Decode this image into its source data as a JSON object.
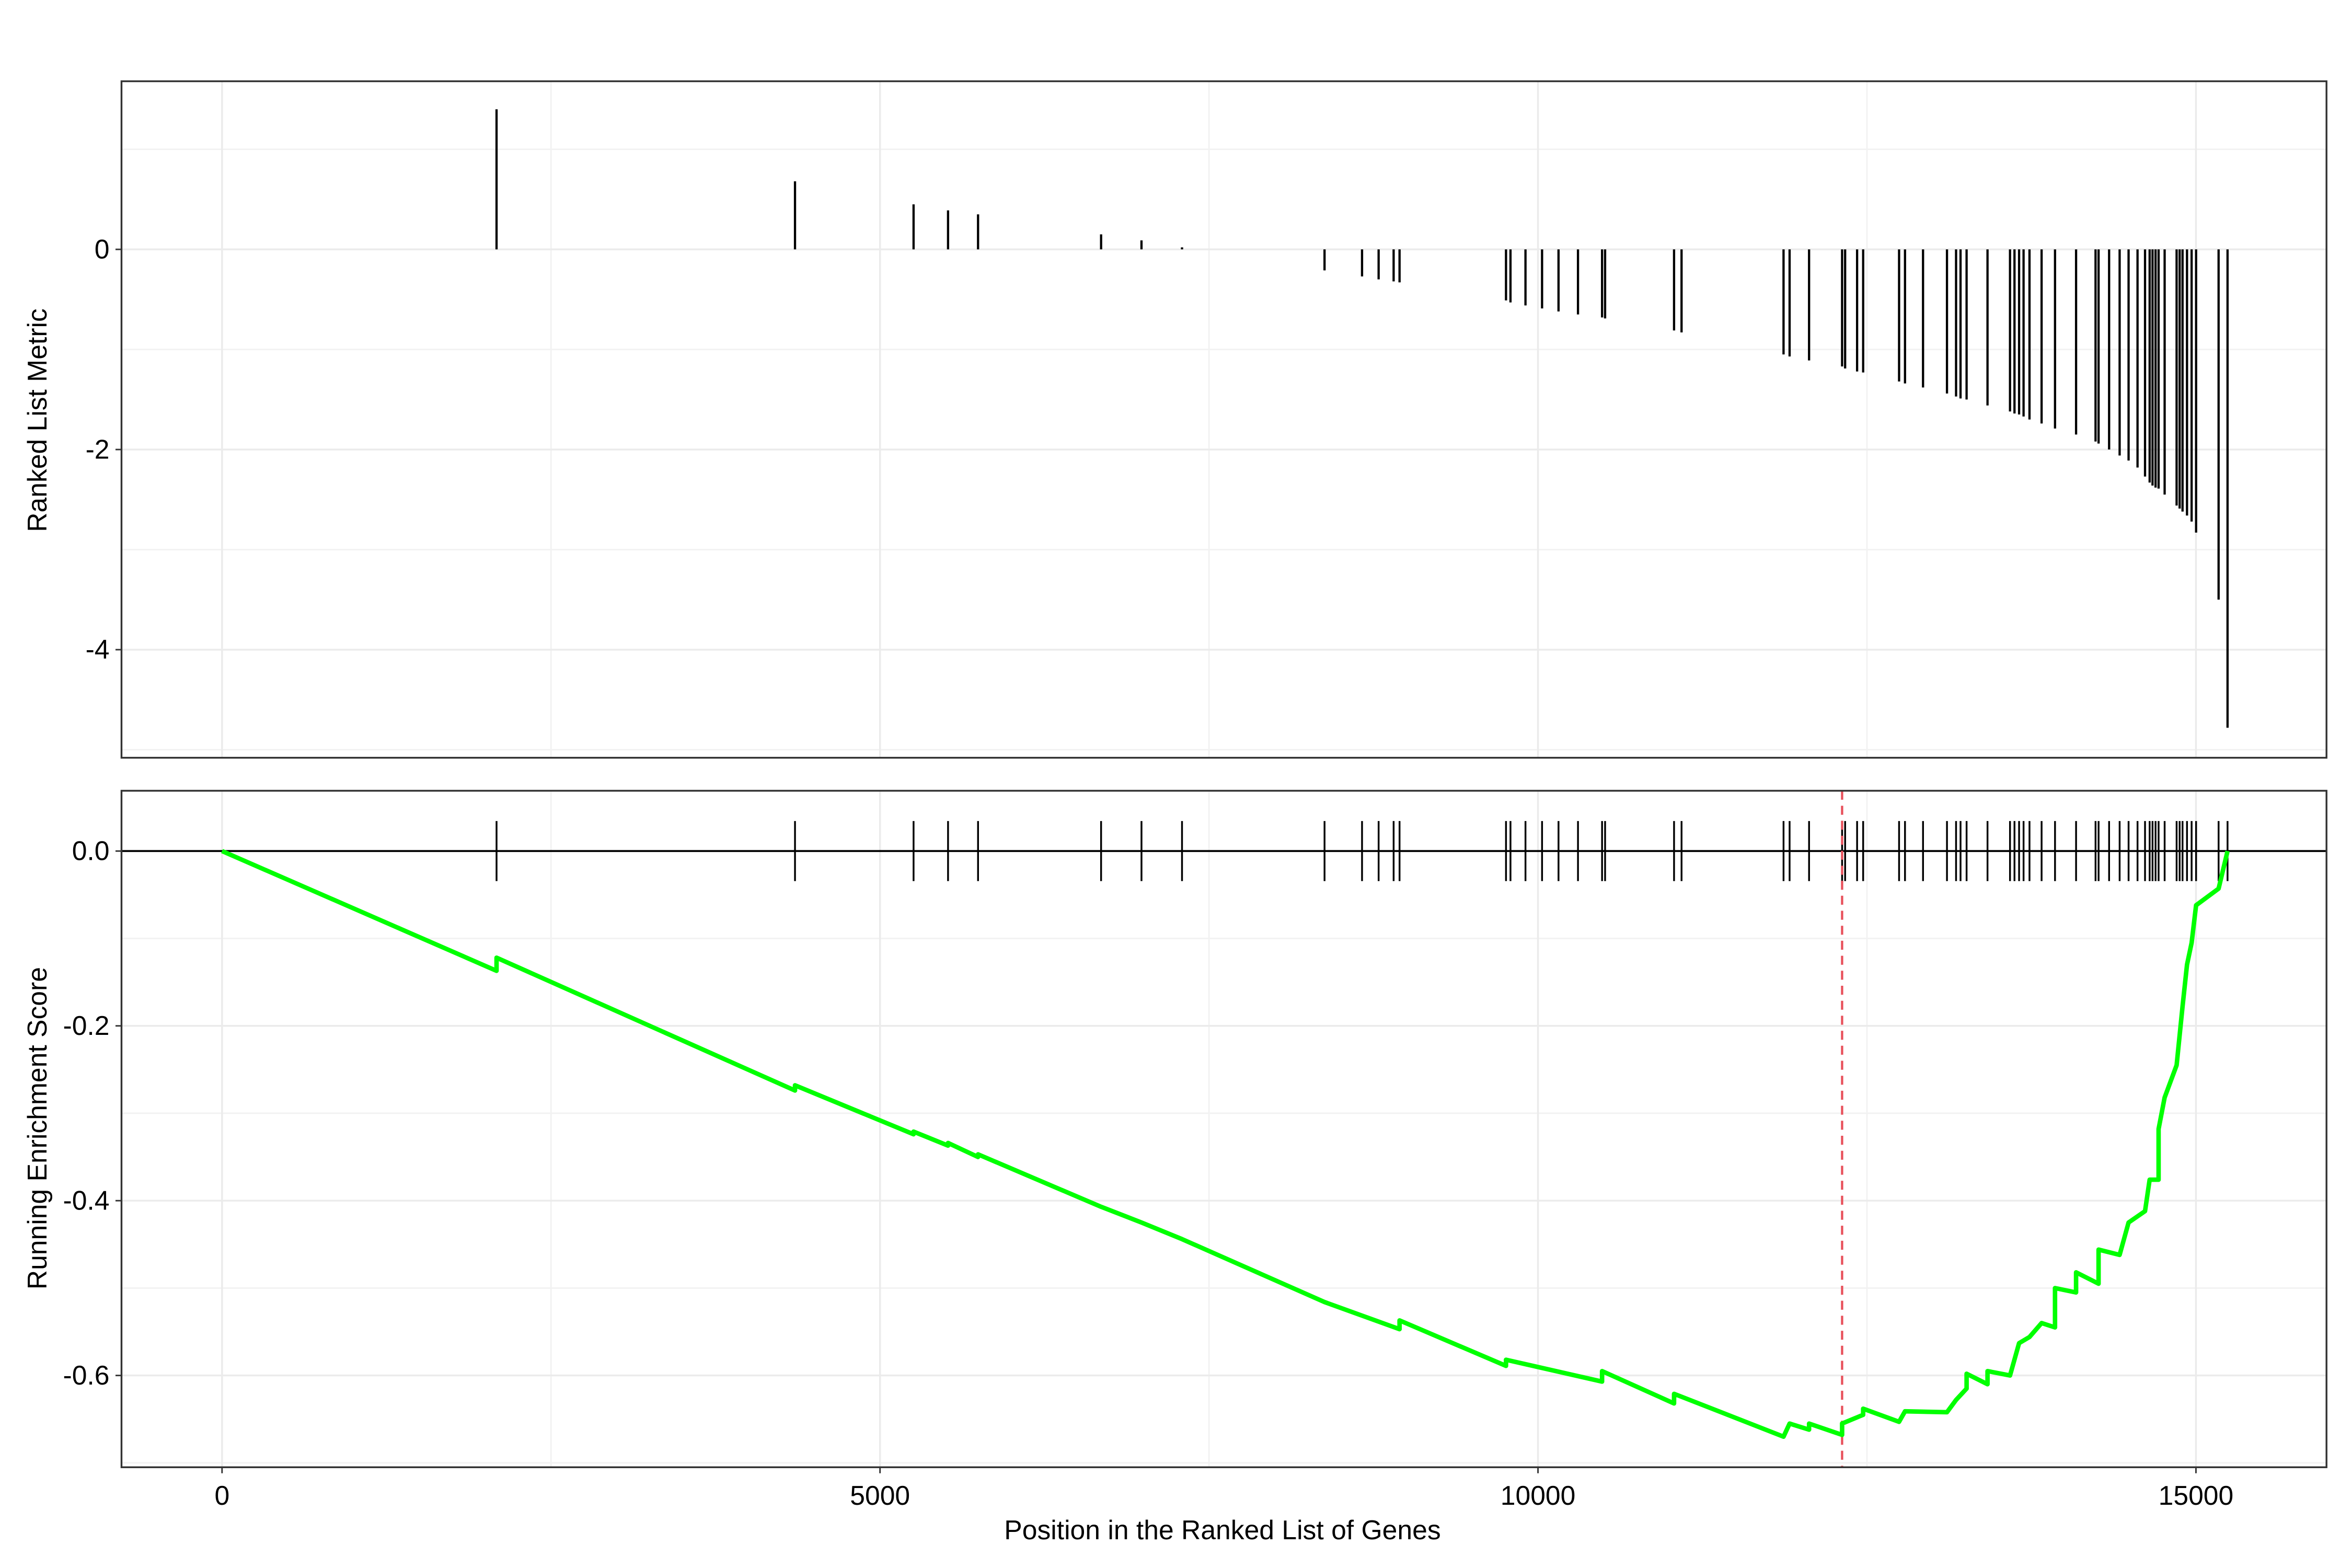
{
  "chart_data": [
    {
      "type": "spike",
      "ylabel": "Ranked List Metric",
      "color": "#000000",
      "x": [
        2086,
        4354,
        5255,
        5517,
        5745,
        6680,
        6987,
        7295,
        8378,
        8663,
        8789,
        8903,
        8948,
        9757,
        9791,
        9905,
        10031,
        10156,
        10304,
        10487,
        10510,
        11034,
        11091,
        11866,
        11912,
        12060,
        12311,
        12334,
        12425,
        12471,
        12744,
        12789,
        12926,
        13108,
        13177,
        13211,
        13257,
        13416,
        13587,
        13621,
        13656,
        13690,
        13735,
        13827,
        13929,
        14089,
        14237,
        14260,
        14340,
        14420,
        14488,
        14556,
        14613,
        14648,
        14670,
        14693,
        14716,
        14762,
        14853,
        14876,
        14898,
        14932,
        14967,
        15001,
        15172,
        15240
      ],
      "values": [
        1.4,
        0.68,
        0.45,
        0.39,
        0.35,
        0.15,
        0.09,
        0.02,
        -0.21,
        -0.27,
        -0.3,
        -0.32,
        -0.33,
        -0.51,
        -0.53,
        -0.56,
        -0.59,
        -0.62,
        -0.65,
        -0.68,
        -0.69,
        -0.81,
        -0.83,
        -1.05,
        -1.07,
        -1.11,
        -1.17,
        -1.19,
        -1.22,
        -1.23,
        -1.32,
        -1.34,
        -1.38,
        -1.44,
        -1.47,
        -1.49,
        -1.5,
        -1.56,
        -1.62,
        -1.64,
        -1.65,
        -1.67,
        -1.7,
        -1.74,
        -1.79,
        -1.85,
        -1.92,
        -1.94,
        -2.0,
        -2.06,
        -2.11,
        -2.18,
        -2.27,
        -2.33,
        -2.36,
        -2.38,
        -2.39,
        -2.45,
        -2.56,
        -2.59,
        -2.62,
        -2.66,
        -2.72,
        -2.83,
        -3.5,
        -4.78
      ],
      "xlim": [
        -764,
        15992
      ],
      "ylim": [
        -5.08,
        1.68
      ],
      "yticks": [
        -4,
        -2,
        0
      ],
      "grid": true
    },
    {
      "type": "line",
      "xlabel": "Position in the Ranked List of Genes",
      "ylabel": "Running Enrichment Score",
      "color": "#00ff00",
      "x": [
        0,
        2086,
        2086,
        4354,
        4354,
        5255,
        5255,
        5517,
        5517,
        5745,
        5745,
        6680,
        6987,
        7295,
        8378,
        8948,
        8948,
        9757,
        9757,
        10487,
        10487,
        11034,
        11034,
        11866,
        11912,
        12060,
        12060,
        12311,
        12311,
        12471,
        12471,
        12744,
        12789,
        13108,
        13177,
        13257,
        13257,
        13416,
        13416,
        13587,
        13656,
        13735,
        13827,
        13929,
        13929,
        14089,
        14089,
        14260,
        14260,
        14420,
        14488,
        14613,
        14648,
        14716,
        14716,
        14762,
        14853,
        14898,
        14932,
        14967,
        15001,
        15172,
        15240
      ],
      "values": [
        0,
        -0.137,
        -0.122,
        -0.274,
        -0.268,
        -0.324,
        -0.321,
        -0.337,
        -0.334,
        -0.35,
        -0.347,
        -0.407,
        -0.425,
        -0.444,
        -0.516,
        -0.547,
        -0.537,
        -0.589,
        -0.582,
        -0.607,
        -0.595,
        -0.632,
        -0.621,
        -0.67,
        -0.655,
        -0.662,
        -0.655,
        -0.668,
        -0.655,
        -0.645,
        -0.638,
        -0.653,
        -0.641,
        -0.642,
        -0.628,
        -0.615,
        -0.598,
        -0.61,
        -0.595,
        -0.6,
        -0.563,
        -0.556,
        -0.54,
        -0.545,
        -0.5,
        -0.505,
        -0.482,
        -0.495,
        -0.456,
        -0.462,
        -0.425,
        -0.412,
        -0.376,
        -0.376,
        -0.318,
        -0.282,
        -0.245,
        -0.178,
        -0.13,
        -0.105,
        -0.062,
        -0.043,
        0
      ],
      "peak_x": 12311,
      "peak_color": "#e8505b",
      "xlim": [
        -764,
        15992
      ],
      "xticks": [
        0,
        5000,
        10000,
        15000
      ],
      "ylim": [
        -0.705,
        0.069
      ],
      "yticks": [
        -0.6,
        -0.4,
        -0.2,
        {
          "value": 0,
          "label": "0.0"
        }
      ],
      "grid": true
    }
  ]
}
